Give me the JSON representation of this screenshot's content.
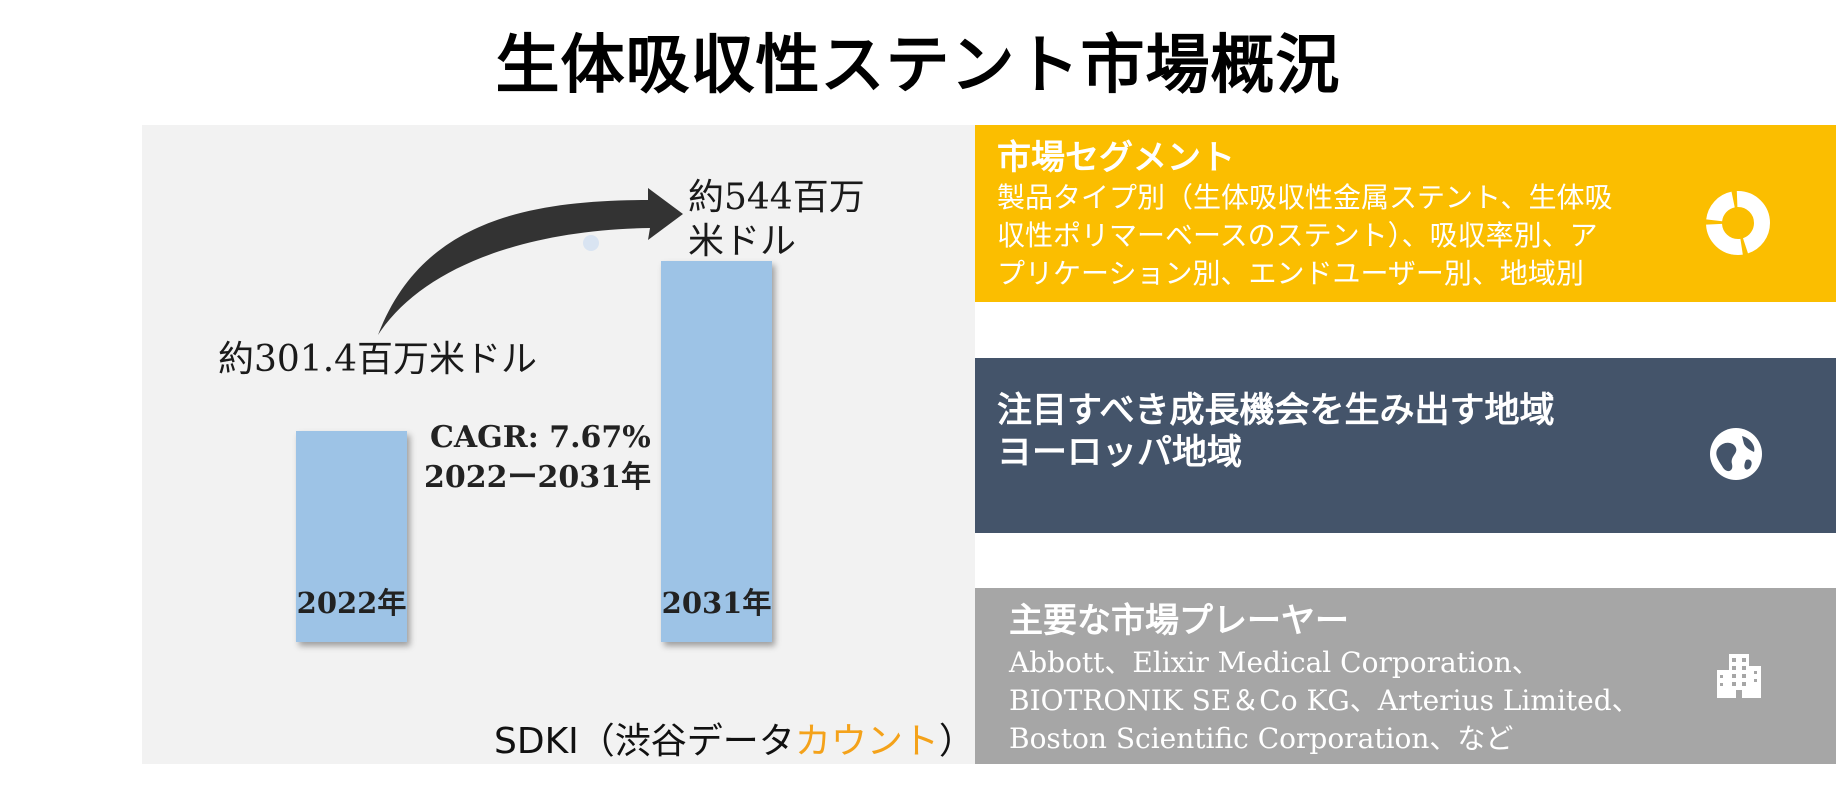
{
  "title": "生体吸収性ステント市場概況",
  "chart_data": {
    "type": "bar",
    "categories": [
      "2022年",
      "2031年"
    ],
    "values": [
      301.4,
      544
    ],
    "value_labels": [
      "約301.4百万米ドル",
      "約544百万米ドル"
    ],
    "cagr_line1": "CAGR: 7.67%",
    "cagr_line2": "2022ー2031年",
    "bar_color": "#9dc3e6",
    "arrow_color": "#333333"
  },
  "source": {
    "prefix": "SDKI（渋谷データ",
    "accent": "カウント",
    "suffix": "）",
    "accent_color": "#f4a21a"
  },
  "panels": [
    {
      "heading": "市場セグメント",
      "lines": [
        "製品タイプ別（生体吸収性金属ステント、生体吸",
        "収性ポリマーベースのステント）、吸収率別、ア",
        "プリケーション別、エンドユーザー別、地域別"
      ],
      "icon": "pie-chart-icon",
      "color": "#fbbe00"
    },
    {
      "heading": "注目すべき成長機会を生み出す地域",
      "lines": [
        "ヨーロッパ地域"
      ],
      "icon": "globe-icon",
      "color": "#44546a"
    },
    {
      "heading": "主要な市場プレーヤー",
      "lines": [
        "Abbott、Elixir Medical Corporation、",
        "BIOTRONIK SE＆Co KG、Arterius Limited、",
        "Boston Scientific Corporation、など"
      ],
      "icon": "buildings-icon",
      "color": "#a6a6a6"
    }
  ]
}
